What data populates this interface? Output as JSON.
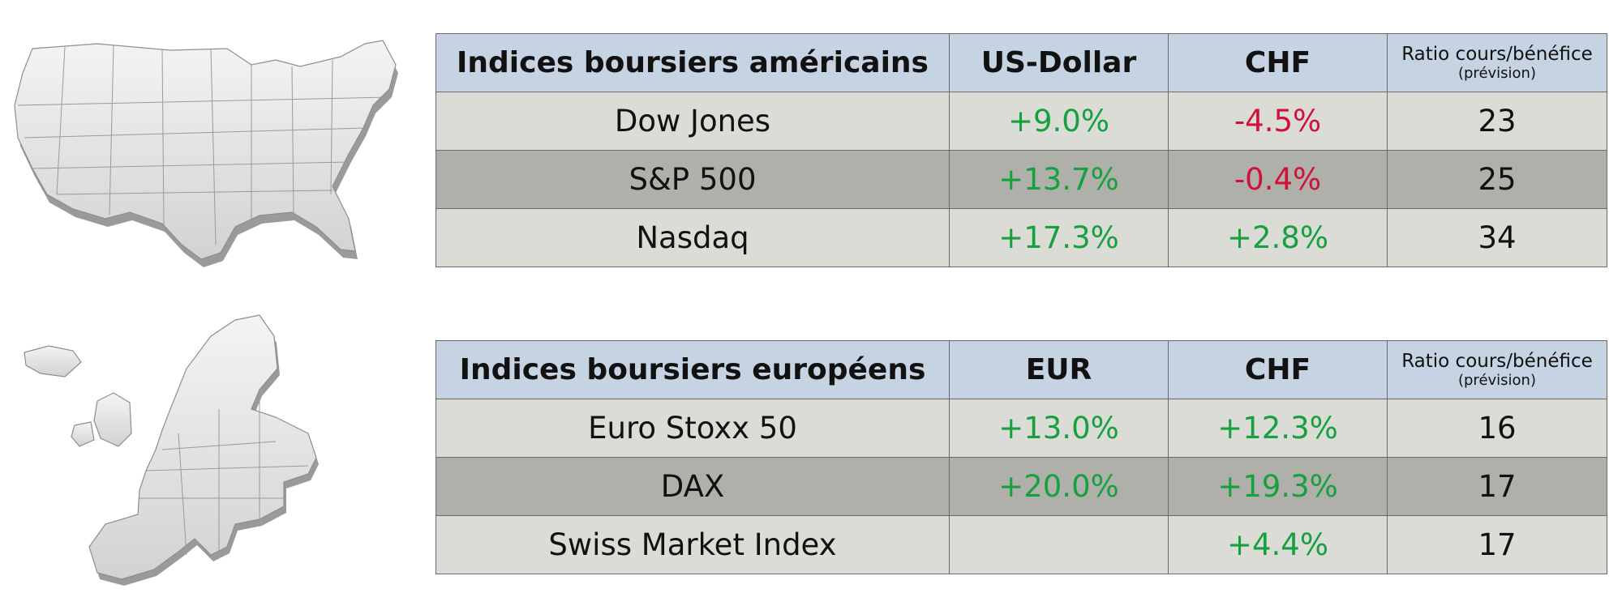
{
  "colors": {
    "header_bg": "#c5d3e3",
    "row_light": "#dcdcd6",
    "row_dark": "#b0b0aa",
    "positive": "#16a040",
    "negative": "#d0123a"
  },
  "maps": {
    "us": "usa-map-icon",
    "eu": "europe-map-icon"
  },
  "tables": {
    "us": {
      "headers": [
        "Indices boursiers américains",
        "US-Dollar",
        "CHF"
      ],
      "pe_header": {
        "main": "Ratio cours/bénéfice",
        "sub": "(prévision)"
      },
      "rows": [
        {
          "name": "Dow Jones",
          "local": "+9.0%",
          "chf": "-4.5%",
          "pe": "23"
        },
        {
          "name": "S&P 500",
          "local": "+13.7%",
          "chf": "-0.4%",
          "pe": "25"
        },
        {
          "name": "Nasdaq",
          "local": "+17.3%",
          "chf": "+2.8%",
          "pe": "34"
        }
      ]
    },
    "eu": {
      "headers": [
        "Indices boursiers européens",
        "EUR",
        "CHF"
      ],
      "pe_header": {
        "main": "Ratio cours/bénéfice",
        "sub": "(prévision)"
      },
      "rows": [
        {
          "name": "Euro Stoxx 50",
          "local": "+13.0%",
          "chf": "+12.3%",
          "pe": "16"
        },
        {
          "name": "DAX",
          "local": "+20.0%",
          "chf": "+19.3%",
          "pe": "17"
        },
        {
          "name": "Swiss Market Index",
          "local": "",
          "chf": "+4.4%",
          "pe": "17"
        }
      ]
    }
  }
}
